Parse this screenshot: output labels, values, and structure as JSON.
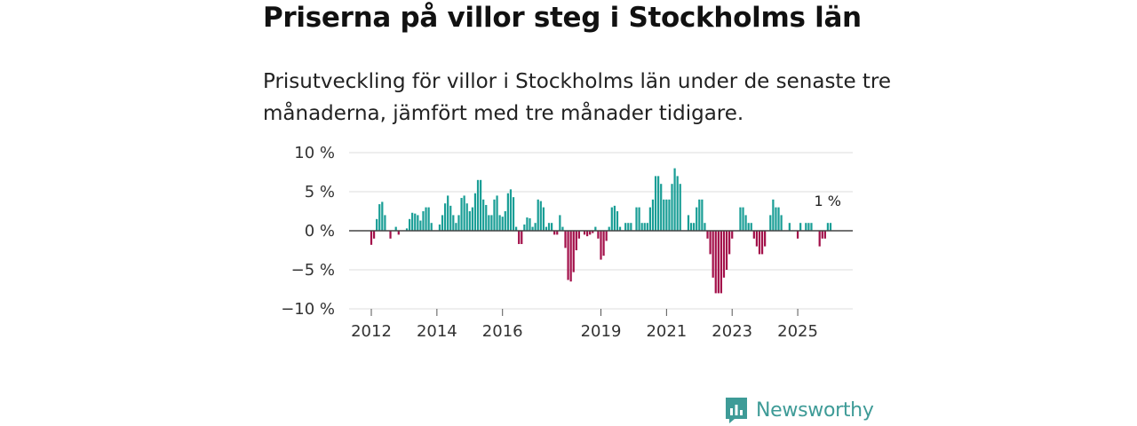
{
  "header": {
    "title": "Priserna på villor steg i Stockholms län",
    "subtitle": "Prisutveckling för villor i Stockholms län under de senaste tre månaderna, jämfört med tre månader tidigare."
  },
  "brand": {
    "name": "Newsworthy",
    "icon": "newsworthy-logo-icon"
  },
  "colors": {
    "positive": "#1a9e96",
    "negative": "#a3104a",
    "grid": "#dddddd",
    "zero_line": "#444444",
    "brand": "#3e9b97"
  },
  "chart_data": {
    "type": "bar",
    "title": "Priserna på villor steg i Stockholms län",
    "xlabel": "",
    "ylabel": "",
    "ylim": [
      -10,
      10
    ],
    "yticks": [
      10,
      5,
      0,
      -5,
      -10
    ],
    "ytick_labels": [
      "10 %",
      "5 %",
      "0 %",
      "−5 %",
      "−10 %"
    ],
    "xtick_years": [
      2012,
      2014,
      2016,
      2019,
      2021,
      2023,
      2025
    ],
    "x_range": [
      2011.5,
      2026.7
    ],
    "start_year": 2012,
    "months_per_bar": 1,
    "grid": true,
    "last_value_label": "1 %",
    "series": [
      {
        "name": "Prisutveckling villor",
        "values": [
          -1.8,
          -1.0,
          1.5,
          3.4,
          3.7,
          2.0,
          0.0,
          -1.0,
          0.0,
          0.5,
          -0.5,
          0.0,
          0.0,
          0.3,
          1.5,
          2.3,
          2.2,
          2.0,
          1.3,
          2.5,
          3.0,
          3.0,
          1.0,
          0.0,
          0.0,
          0.8,
          2.0,
          3.5,
          4.5,
          3.2,
          2.0,
          1.0,
          2.0,
          4.2,
          4.5,
          3.5,
          2.5,
          3.0,
          4.8,
          6.5,
          6.5,
          4.0,
          3.3,
          2.0,
          2.0,
          4.0,
          4.5,
          2.0,
          1.8,
          2.5,
          4.8,
          5.3,
          4.3,
          0.5,
          -1.7,
          -1.7,
          0.8,
          1.7,
          1.6,
          0.5,
          1.0,
          4.0,
          3.8,
          3.0,
          0.5,
          1.0,
          1.0,
          -0.5,
          -0.5,
          2.0,
          0.5,
          -2.2,
          -6.3,
          -6.5,
          -5.3,
          -2.5,
          -1.0,
          0.0,
          -0.5,
          -0.7,
          -0.5,
          -0.3,
          0.5,
          -1.0,
          -3.7,
          -3.2,
          -1.3,
          0.5,
          3.0,
          3.2,
          2.5,
          0.5,
          0.0,
          1.0,
          1.0,
          1.0,
          0.0,
          3.0,
          3.0,
          1.0,
          1.0,
          1.0,
          3.0,
          4.0,
          7.0,
          7.0,
          6.0,
          4.0,
          4.0,
          4.0,
          6.0,
          8.0,
          7.0,
          6.0,
          0.0,
          0.0,
          2.0,
          1.0,
          1.0,
          3.0,
          4.0,
          4.0,
          1.0,
          -1.0,
          -3.0,
          -6.0,
          -8.0,
          -8.0,
          -8.0,
          -6.0,
          -5.0,
          -3.0,
          -1.0,
          0.0,
          0.0,
          3.0,
          3.0,
          2.0,
          1.0,
          1.0,
          -1.0,
          -2.0,
          -3.0,
          -3.0,
          -2.0,
          0.0,
          2.0,
          4.0,
          3.0,
          3.0,
          2.0,
          0.0,
          0.0,
          1.0,
          0.0,
          0.0,
          -1.0,
          1.0,
          0.0,
          1.0,
          1.0,
          1.0,
          0.0,
          0.0,
          -2.0,
          -1.0,
          -1.0,
          1.0,
          1.0
        ]
      }
    ]
  }
}
